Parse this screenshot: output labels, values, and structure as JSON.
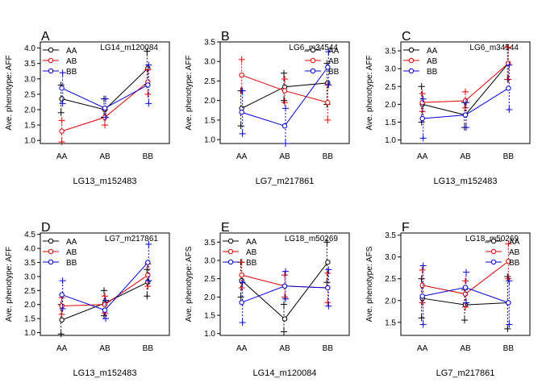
{
  "colors": {
    "AA": "#000000",
    "AB": "#e00000",
    "BB": "#0000dd"
  },
  "chart_data": [
    {
      "type": "line",
      "panel": "A",
      "marker": "LG14_m120084",
      "xlabel": "LG13_m152483",
      "ylabel": "Ave. phenotype: AFF",
      "categories": [
        "AA",
        "AB",
        "BB"
      ],
      "ylim": [
        0.9,
        4.2
      ],
      "yticks": [
        1.0,
        1.5,
        2.0,
        2.5,
        3.0,
        3.5,
        4.0
      ],
      "yticklabels": [
        "1.0",
        "1.5",
        "2.0",
        "2.5",
        "3.0",
        "3.5",
        "4.0"
      ],
      "series": [
        {
          "name": "AA",
          "values": [
            2.35,
            2.0,
            3.35
          ],
          "errors": [
            [
              1.9,
              2.8
            ],
            [
              1.75,
              2.35
            ],
            [
              2.8,
              3.9
            ]
          ]
        },
        {
          "name": "AB",
          "values": [
            1.3,
            1.75,
            2.9
          ],
          "errors": [
            [
              0.95,
              1.65
            ],
            [
              1.5,
              2.0
            ],
            [
              2.5,
              3.3
            ]
          ]
        },
        {
          "name": "BB",
          "values": [
            2.7,
            2.05,
            2.8
          ],
          "errors": [
            [
              2.2,
              3.2
            ],
            [
              1.75,
              2.35
            ],
            [
              2.2,
              3.45
            ]
          ]
        }
      ],
      "legend": {
        "entries": [
          "AA",
          "AB",
          "BB"
        ],
        "position": "top-left"
      }
    },
    {
      "type": "line",
      "panel": "B",
      "marker": "LG6_m34544",
      "xlabel": "LG7_m217861",
      "ylabel": "Ave. phenotype: AFF",
      "categories": [
        "AA",
        "AB",
        "BB"
      ],
      "ylim": [
        0.9,
        3.5
      ],
      "yticks": [
        1.0,
        1.5,
        2.0,
        2.5,
        3.0,
        3.5
      ],
      "yticklabels": [
        "1.0",
        "1.5",
        "2.0",
        "2.5",
        "3.0",
        "3.5"
      ],
      "series": [
        {
          "name": "AA",
          "values": [
            1.8,
            2.35,
            2.45
          ],
          "errors": [
            [
              1.35,
              2.25
            ],
            [
              2.0,
              2.7
            ],
            [
              1.9,
              2.95
            ]
          ]
        },
        {
          "name": "AB",
          "values": [
            2.65,
            2.25,
            1.95
          ],
          "errors": [
            [
              2.25,
              3.05
            ],
            [
              1.95,
              2.55
            ],
            [
              1.5,
              2.4
            ]
          ]
        },
        {
          "name": "BB",
          "values": [
            1.7,
            1.35,
            2.85
          ],
          "errors": [
            [
              1.15,
              2.25
            ],
            [
              0.9,
              1.8
            ],
            [
              2.4,
              3.25
            ]
          ]
        }
      ],
      "legend": {
        "entries": [
          "AA",
          "AB",
          "BB"
        ],
        "position": "top-right"
      }
    },
    {
      "type": "line",
      "panel": "C",
      "marker": "LG6_m34544",
      "xlabel": "LG13_m152483",
      "ylabel": "Ave. phenotype: AFF",
      "categories": [
        "AA",
        "AB",
        "BB"
      ],
      "ylim": [
        0.9,
        3.75
      ],
      "yticks": [
        1.0,
        1.5,
        2.0,
        2.5,
        3.0,
        3.5
      ],
      "yticklabels": [
        "1.0",
        "1.5",
        "2.0",
        "2.5",
        "3.0",
        "3.5"
      ],
      "series": [
        {
          "name": "AA",
          "values": [
            2.0,
            1.7,
            3.15
          ],
          "errors": [
            [
              1.5,
              2.5
            ],
            [
              1.35,
              2.05
            ],
            [
              2.7,
              3.6
            ]
          ]
        },
        {
          "name": "AB",
          "values": [
            2.05,
            2.1,
            3.15
          ],
          "errors": [
            [
              1.8,
              2.3
            ],
            [
              1.9,
              2.35
            ],
            [
              2.7,
              3.6
            ]
          ]
        },
        {
          "name": "BB",
          "values": [
            1.6,
            1.7,
            2.45
          ],
          "errors": [
            [
              1.05,
              2.15
            ],
            [
              1.35,
              2.05
            ],
            [
              1.85,
              3.1
            ]
          ]
        }
      ],
      "legend": {
        "entries": [
          "AA",
          "AB",
          "BB"
        ],
        "position": "top-left"
      }
    },
    {
      "type": "line",
      "panel": "D",
      "marker": "LG7_m217861",
      "xlabel": "LG13_m152483",
      "ylabel": "Ave. phenotype: AFF",
      "categories": [
        "AA",
        "AB",
        "BB"
      ],
      "ylim": [
        0.9,
        4.55
      ],
      "yticks": [
        1.0,
        1.5,
        2.0,
        2.5,
        3.0,
        3.5,
        4.0,
        4.5
      ],
      "yticklabels": [
        "1.0",
        "1.5",
        "2.0",
        "2.5",
        "3.0",
        "3.5",
        "4.0",
        "4.5"
      ],
      "series": [
        {
          "name": "AA",
          "values": [
            1.45,
            2.05,
            2.8
          ],
          "errors": [
            [
              0.95,
              2.0
            ],
            [
              1.6,
              2.5
            ],
            [
              2.3,
              3.25
            ]
          ]
        },
        {
          "name": "AB",
          "values": [
            1.95,
            2.0,
            3.05
          ],
          "errors": [
            [
              1.65,
              2.25
            ],
            [
              1.7,
              2.3
            ],
            [
              2.65,
              3.45
            ]
          ]
        },
        {
          "name": "BB",
          "values": [
            2.35,
            1.8,
            3.5
          ],
          "errors": [
            [
              1.85,
              2.85
            ],
            [
              1.5,
              2.15
            ],
            [
              2.85,
              4.15
            ]
          ]
        }
      ],
      "legend": {
        "entries": [
          "AA",
          "AB",
          "BB"
        ],
        "position": "top-left"
      }
    },
    {
      "type": "line",
      "panel": "E",
      "marker": "LG18_m50269",
      "xlabel": "LG14_m120084",
      "ylabel": "Ave. phenotype: AFS",
      "categories": [
        "AA",
        "AB",
        "BB"
      ],
      "ylim": [
        0.95,
        3.75
      ],
      "yticks": [
        1.0,
        1.5,
        2.0,
        2.5,
        3.0,
        3.5
      ],
      "yticklabels": [
        "1.0",
        "1.5",
        "2.0",
        "2.5",
        "3.0",
        "3.5"
      ],
      "series": [
        {
          "name": "AA",
          "values": [
            2.45,
            1.4,
            2.95
          ],
          "errors": [
            [
              2.0,
              2.95
            ],
            [
              1.05,
              1.8
            ],
            [
              2.4,
              3.5
            ]
          ]
        },
        {
          "name": "AB",
          "values": [
            2.6,
            2.3,
            2.25
          ],
          "errors": [
            [
              2.25,
              2.95
            ],
            [
              2.0,
              2.6
            ],
            [
              1.85,
              2.65
            ]
          ]
        },
        {
          "name": "BB",
          "values": [
            1.85,
            2.3,
            2.25
          ],
          "errors": [
            [
              1.3,
              2.4
            ],
            [
              1.95,
              2.7
            ],
            [
              1.75,
              2.75
            ]
          ]
        }
      ],
      "legend": {
        "entries": [
          "AA",
          "AB",
          "BB"
        ],
        "position": "top-left"
      }
    },
    {
      "type": "line",
      "panel": "F",
      "marker": "LG18_m50269",
      "xlabel": "LG7_m217861",
      "ylabel": "Ave. phenotype: AFS",
      "categories": [
        "AA",
        "AB",
        "BB"
      ],
      "ylim": [
        1.2,
        3.55
      ],
      "yticks": [
        1.5,
        2.0,
        2.5,
        3.0,
        3.5
      ],
      "yticklabels": [
        "1.5",
        "2.0",
        "2.5",
        "3.0",
        "3.5"
      ],
      "series": [
        {
          "name": "AA",
          "values": [
            2.05,
            1.9,
            1.95
          ],
          "errors": [
            [
              1.6,
              2.5
            ],
            [
              1.55,
              2.25
            ],
            [
              1.35,
              2.55
            ]
          ]
        },
        {
          "name": "AB",
          "values": [
            2.35,
            2.15,
            2.9
          ],
          "errors": [
            [
              1.95,
              2.7
            ],
            [
              1.85,
              2.45
            ],
            [
              2.5,
              3.3
            ]
          ]
        },
        {
          "name": "BB",
          "values": [
            2.1,
            2.3,
            1.95
          ],
          "errors": [
            [
              1.45,
              2.8
            ],
            [
              1.95,
              2.65
            ],
            [
              1.45,
              2.45
            ]
          ]
        }
      ],
      "legend": {
        "entries": [
          "AA",
          "AB",
          "BB"
        ],
        "position": "top-right"
      }
    }
  ]
}
